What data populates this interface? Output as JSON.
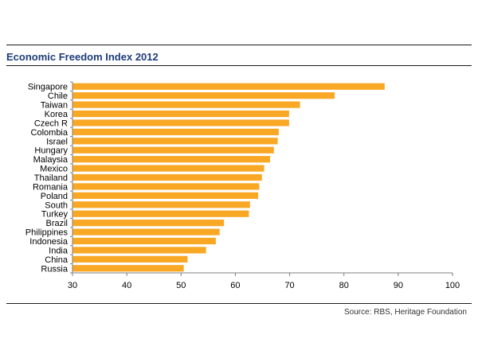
{
  "chart_data": {
    "type": "bar",
    "orientation": "horizontal",
    "title": "Economic Freedom Index 2012",
    "categories": [
      "Singapore",
      "Chile",
      "Taiwan",
      "Korea",
      "Czech R",
      "Colombia",
      "Israel",
      "Hungary",
      "Malaysia",
      "Mexico",
      "Thailand",
      "Romania",
      "Poland",
      "South",
      "Turkey",
      "Brazil",
      "Philippines",
      "Indonesia",
      "India",
      "China",
      "Russia"
    ],
    "values": [
      87.5,
      78.3,
      71.9,
      69.9,
      69.9,
      68.0,
      67.8,
      67.1,
      66.4,
      65.3,
      64.9,
      64.4,
      64.2,
      62.7,
      62.5,
      57.9,
      57.1,
      56.4,
      54.6,
      51.2,
      50.5
    ],
    "xlim": [
      30,
      100
    ],
    "xticks": [
      30,
      40,
      50,
      60,
      70,
      80,
      90,
      100
    ],
    "xlabel": "",
    "ylabel": "",
    "bar_color": "#f9a825",
    "source": "Source:  RBS, Heritage Foundation"
  }
}
